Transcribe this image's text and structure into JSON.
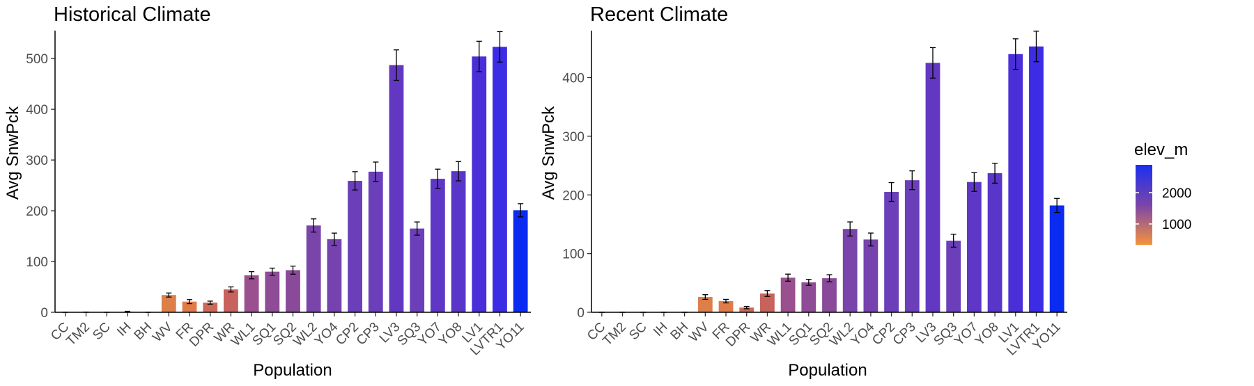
{
  "chart_data": [
    {
      "type": "bar",
      "title": "Historical Climate",
      "xlabel": "Population",
      "ylabel": "Avg SnwPck",
      "ylim": [
        0,
        555
      ],
      "yticks": [
        0,
        100,
        200,
        300,
        400,
        500
      ],
      "categories": [
        "CC",
        "TM2",
        "SC",
        "IH",
        "BH",
        "WV",
        "FR",
        "DPR",
        "WR",
        "WL1",
        "SQ1",
        "SQ2",
        "WL2",
        "YO4",
        "CP2",
        "CP3",
        "LV3",
        "SQ3",
        "YO7",
        "YO8",
        "LV1",
        "LVTR1",
        "YO11"
      ],
      "values": [
        0,
        0,
        0,
        1,
        0,
        34,
        21,
        19,
        45,
        73,
        80,
        83,
        171,
        144,
        259,
        277,
        487,
        165,
        263,
        278,
        504,
        523,
        201
      ],
      "errors": [
        0,
        0.5,
        0,
        1,
        0,
        4,
        4,
        3,
        5,
        7,
        7,
        8,
        13,
        12,
        18,
        19,
        30,
        13,
        19,
        19,
        30,
        30,
        13
      ],
      "colors": [
        "#ee8d44",
        "#ee8d44",
        "#e98446",
        "#d2704f",
        "#e08b44",
        "#dd7f48",
        "#e07c49",
        "#cc6a58",
        "#c8625c",
        "#9a508e",
        "#8e4c96",
        "#8a4a9a",
        "#7a45aa",
        "#7643ae",
        "#6a3fb9",
        "#6a3fb9",
        "#6238c2",
        "#6a3fb9",
        "#5e37c6",
        "#5a35ca",
        "#4a2fd8",
        "#3c2ce4",
        "#0a2bf2"
      ]
    },
    {
      "type": "bar",
      "title": "Recent Climate",
      "xlabel": "Population",
      "ylabel": "Avg SnwPck",
      "ylim": [
        0,
        480
      ],
      "yticks": [
        0,
        100,
        200,
        300,
        400
      ],
      "categories": [
        "CC",
        "TM2",
        "SC",
        "IH",
        "BH",
        "WV",
        "FR",
        "DPR",
        "WR",
        "WL1",
        "SQ1",
        "SQ2",
        "WL2",
        "YO4",
        "CP2",
        "CP3",
        "LV3",
        "SQ3",
        "YO7",
        "YO8",
        "LV1",
        "LVTR1",
        "YO11"
      ],
      "values": [
        0,
        0,
        0,
        0,
        0,
        26,
        19,
        8,
        32,
        59,
        51,
        58,
        142,
        124,
        205,
        225,
        425,
        122,
        222,
        237,
        440,
        453,
        182
      ],
      "errors": [
        0,
        0,
        0,
        0,
        0,
        4,
        3,
        2,
        5,
        6,
        5,
        6,
        12,
        11,
        16,
        16,
        26,
        11,
        16,
        17,
        26,
        26,
        12
      ],
      "colors": [
        "#ee8d44",
        "#ee8d44",
        "#e98446",
        "#d2704f",
        "#e08b44",
        "#dd7f48",
        "#e07c49",
        "#cc6a58",
        "#c8625c",
        "#9a508e",
        "#8e4c96",
        "#8a4a9a",
        "#7a45aa",
        "#7643ae",
        "#6a3fb9",
        "#6a3fb9",
        "#6238c2",
        "#6a3fb9",
        "#5e37c6",
        "#5a35ca",
        "#4a2fd8",
        "#3c2ce4",
        "#0a2bf2"
      ]
    }
  ],
  "legend": {
    "title": "elev_m",
    "labels": [
      "2000",
      "1000"
    ],
    "colors": {
      "high": "#1a2ff0",
      "mid": "#7a45aa",
      "low": "#f4923e"
    }
  }
}
